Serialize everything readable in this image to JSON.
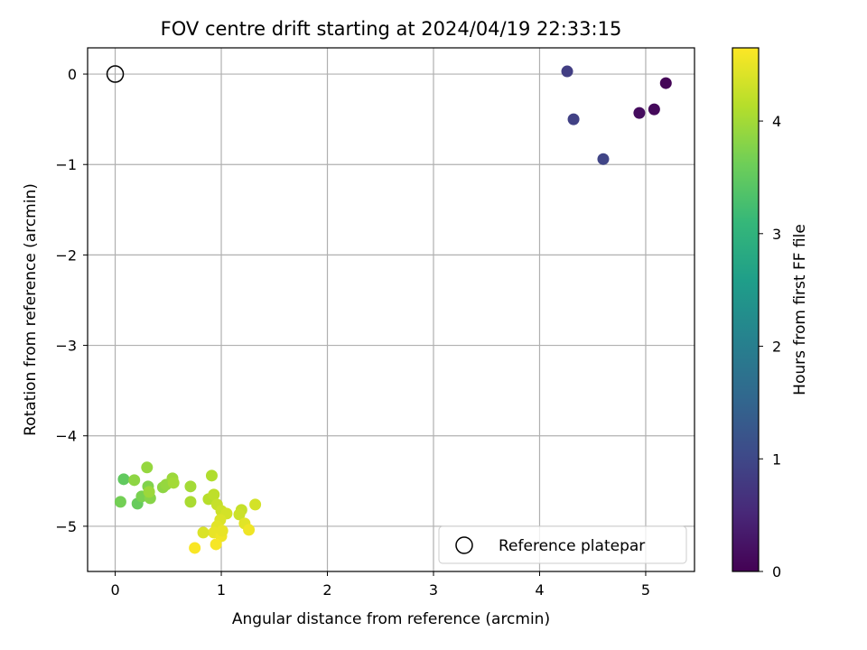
{
  "chart_data": {
    "type": "scatter",
    "title": "FOV centre drift starting at 2024/04/19 22:33:15",
    "xlabel": "Angular distance from reference (arcmin)",
    "ylabel": "Rotation from reference (arcmin)",
    "xlim": [
      -0.26,
      5.46
    ],
    "ylim": [
      -5.5,
      0.29
    ],
    "xticks": [
      0,
      1,
      2,
      3,
      4,
      5
    ],
    "yticks": [
      0,
      -1,
      -2,
      -3,
      -4,
      -5
    ],
    "xtick_labels": [
      "0",
      "1",
      "2",
      "3",
      "4",
      "5"
    ],
    "ytick_labels": [
      "0",
      "−1",
      "−2",
      "−3",
      "−4",
      "−5"
    ],
    "grid": true,
    "legend": {
      "placement": "lower-right",
      "entries": [
        "Reference platepar"
      ]
    },
    "reference_point": {
      "x": 0,
      "y": 0,
      "label": "Reference platepar"
    },
    "colorbar": {
      "label": "Hours from first FF file",
      "colormap": "viridis",
      "range": [
        0,
        4.65
      ],
      "ticks": [
        0,
        1,
        2,
        3,
        4
      ],
      "tick_labels": [
        "0",
        "1",
        "2",
        "3",
        "4"
      ]
    },
    "colormap_stops": [
      "#440154",
      "#482878",
      "#3e4a89",
      "#31688e",
      "#26828e",
      "#1f9e89",
      "#35b779",
      "#6ece58",
      "#b5de2b",
      "#fde725"
    ],
    "points": [
      {
        "x": 5.19,
        "y": -0.1,
        "hours": 0.05
      },
      {
        "x": 5.08,
        "y": -0.39,
        "hours": 0.1
      },
      {
        "x": 4.94,
        "y": -0.43,
        "hours": 0.15
      },
      {
        "x": 4.26,
        "y": 0.03,
        "hours": 0.85
      },
      {
        "x": 4.32,
        "y": -0.5,
        "hours": 0.9
      },
      {
        "x": 4.6,
        "y": -0.94,
        "hours": 0.95
      },
      {
        "x": 0.08,
        "y": -4.48,
        "hours": 3.5
      },
      {
        "x": 0.05,
        "y": -4.73,
        "hours": 3.65
      },
      {
        "x": 0.21,
        "y": -4.75,
        "hours": 3.55
      },
      {
        "x": 0.25,
        "y": -4.67,
        "hours": 3.7
      },
      {
        "x": 0.18,
        "y": -4.49,
        "hours": 3.85
      },
      {
        "x": 0.3,
        "y": -4.35,
        "hours": 3.9
      },
      {
        "x": 0.31,
        "y": -4.56,
        "hours": 3.75
      },
      {
        "x": 0.33,
        "y": -4.69,
        "hours": 3.8
      },
      {
        "x": 0.32,
        "y": -4.62,
        "hours": 3.95
      },
      {
        "x": 0.45,
        "y": -4.57,
        "hours": 3.85
      },
      {
        "x": 0.48,
        "y": -4.54,
        "hours": 3.9
      },
      {
        "x": 0.54,
        "y": -4.47,
        "hours": 3.95
      },
      {
        "x": 0.55,
        "y": -4.52,
        "hours": 4.0
      },
      {
        "x": 0.71,
        "y": -4.56,
        "hours": 4.0
      },
      {
        "x": 0.71,
        "y": -4.73,
        "hours": 4.05
      },
      {
        "x": 0.91,
        "y": -4.44,
        "hours": 4.1
      },
      {
        "x": 0.88,
        "y": -4.7,
        "hours": 4.15
      },
      {
        "x": 0.93,
        "y": -4.65,
        "hours": 4.2
      },
      {
        "x": 0.96,
        "y": -4.76,
        "hours": 4.25
      },
      {
        "x": 1.0,
        "y": -4.83,
        "hours": 4.3
      },
      {
        "x": 1.05,
        "y": -4.86,
        "hours": 4.35
      },
      {
        "x": 0.99,
        "y": -4.93,
        "hours": 4.4
      },
      {
        "x": 0.96,
        "y": -5.0,
        "hours": 4.45
      },
      {
        "x": 0.93,
        "y": -5.07,
        "hours": 4.5
      },
      {
        "x": 1.0,
        "y": -5.11,
        "hours": 4.55
      },
      {
        "x": 0.95,
        "y": -5.2,
        "hours": 4.6
      },
      {
        "x": 0.75,
        "y": -5.24,
        "hours": 4.62
      },
      {
        "x": 0.83,
        "y": -5.07,
        "hours": 4.4
      },
      {
        "x": 1.01,
        "y": -5.05,
        "hours": 4.5
      },
      {
        "x": 1.19,
        "y": -4.82,
        "hours": 4.25
      },
      {
        "x": 1.17,
        "y": -4.87,
        "hours": 4.3
      },
      {
        "x": 1.22,
        "y": -4.97,
        "hours": 4.45
      },
      {
        "x": 1.26,
        "y": -5.04,
        "hours": 4.55
      },
      {
        "x": 1.32,
        "y": -4.76,
        "hours": 4.35
      }
    ]
  }
}
